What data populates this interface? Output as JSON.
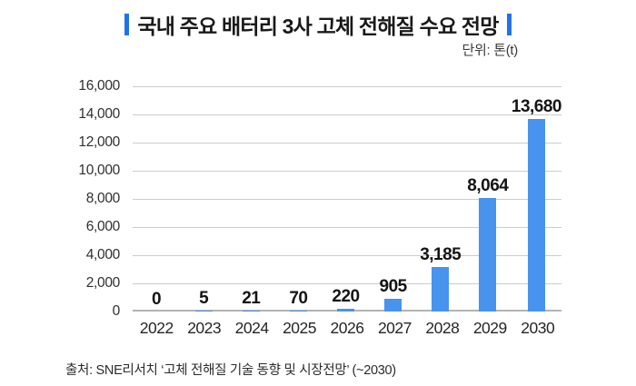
{
  "colors": {
    "accent": "#2273e8",
    "bar": "#4793ee",
    "grid": "#cccccc",
    "baseline": "#b3b3b3",
    "title_text": "#191919",
    "value_text": "#141414",
    "tick_text": "#2f2f2f",
    "xtick_text": "#262626",
    "unit_text": "#3a3a3a",
    "source_text": "#2b2b2b"
  },
  "chart_data": {
    "type": "bar",
    "title": "국내 주요 배터리 3사 고체 전해질 수요 전망",
    "unit_label": "단위: 톤(t)",
    "source": "출처: SNE리서치 ‘고체 전해질 기술 동향 및 시장전망’ (~2030)",
    "categories": [
      "2022",
      "2023",
      "2024",
      "2025",
      "2026",
      "2027",
      "2028",
      "2029",
      "2030"
    ],
    "values": [
      0,
      5,
      21,
      70,
      220,
      905,
      3185,
      8064,
      13680
    ],
    "xlabel": "",
    "ylabel": "",
    "ylim": [
      0,
      16000
    ],
    "ytick_step": 2000,
    "ytick_labels": [
      "16,000",
      "14,000",
      "12,000",
      "10,000",
      "8,000",
      "6,000",
      "4,000",
      "2,000",
      "0"
    ],
    "grid": true,
    "legend": "none"
  }
}
